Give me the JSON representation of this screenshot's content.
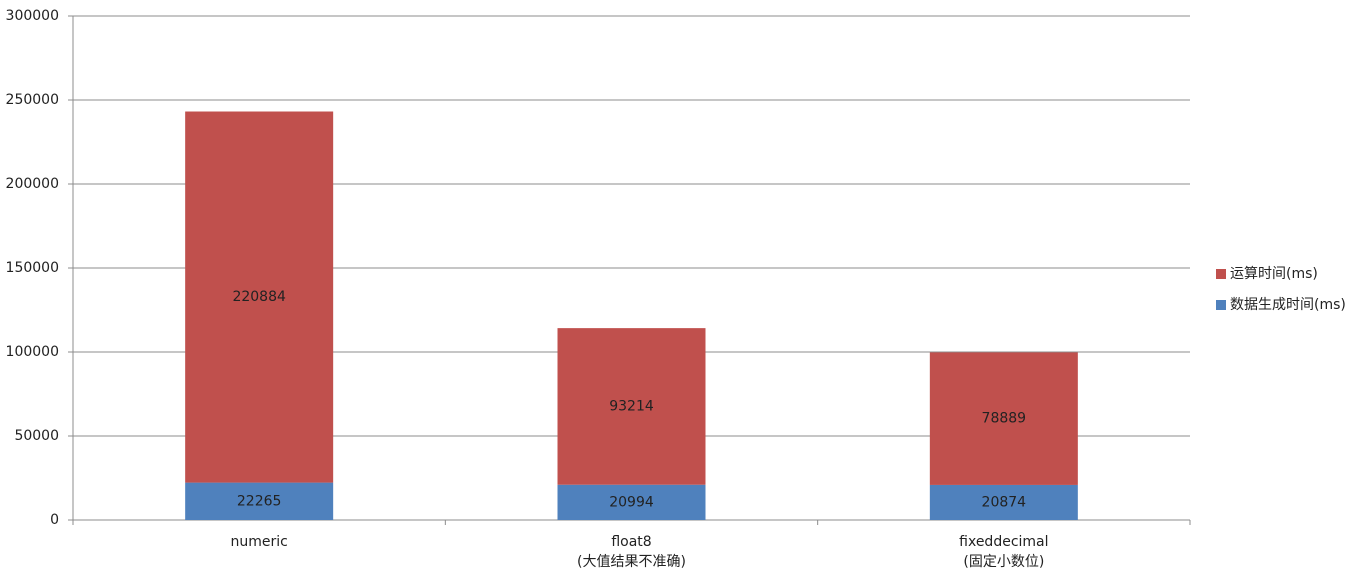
{
  "chart_data": {
    "type": "stacked_bar",
    "categories": [
      [
        "numeric"
      ],
      [
        "float8",
        "(大值结果不准确)"
      ],
      [
        "fixeddecimal",
        "(固定小数位)"
      ]
    ],
    "series": [
      {
        "name": "数据生成时间(ms)",
        "color": "#4f81bd",
        "values": [
          22265,
          20994,
          20874
        ]
      },
      {
        "name": "运算时间(ms)",
        "color": "#c0504d",
        "values": [
          220884,
          93214,
          78889
        ]
      }
    ],
    "ylim": [
      0,
      300000
    ],
    "yticks": [
      0,
      50000,
      100000,
      150000,
      200000,
      250000,
      300000
    ],
    "grid": true,
    "legend": "right"
  }
}
